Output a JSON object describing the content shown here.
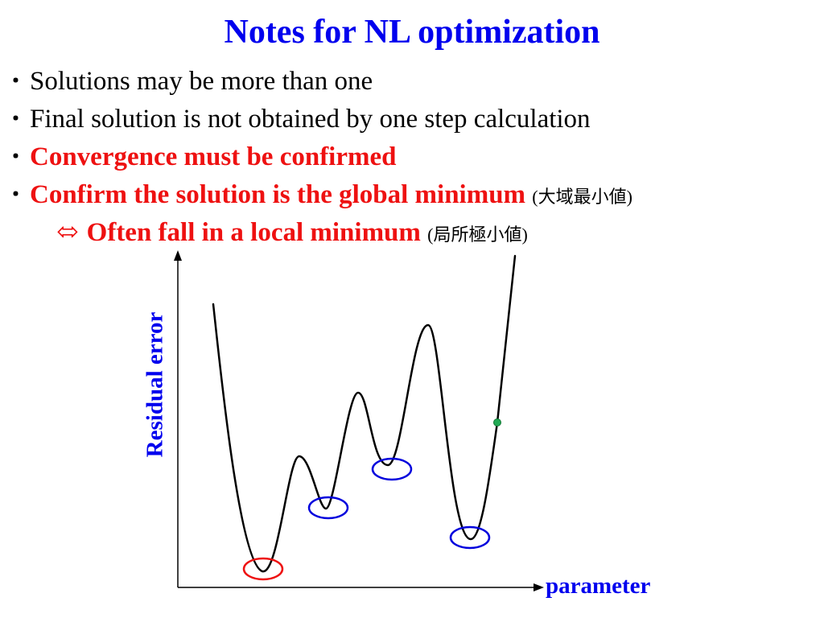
{
  "title": "Notes for NL optimization",
  "bullets": [
    {
      "marker": "･",
      "text": "Solutions may be more than one",
      "highlight": false
    },
    {
      "marker": "･",
      "text": "Final solution  is not obtained by one step calculation",
      "highlight": false
    },
    {
      "marker": "･",
      "text": "Convergence must be confirmed",
      "highlight": true
    },
    {
      "marker": "･",
      "text": "Confirm the solution is the global minimum",
      "highlight": true,
      "note": "大域最小値"
    }
  ],
  "sub_bullet": {
    "symbol": "⬄",
    "text": "Often fall in a local minimum",
    "note": "局所極小値"
  },
  "diagram": {
    "ylabel": "Residual error",
    "xlabel": "parameter",
    "marker_legend": {
      "global_minimum": "red circle",
      "local_minima": "blue circles",
      "current_point": "green dot"
    },
    "colors": {
      "title": "#0000ee",
      "highlight": "#ee1111",
      "global_minimum_marker": "#ee1111",
      "local_minimum_marker": "#0000dd",
      "current_point": "#22aa55"
    }
  }
}
